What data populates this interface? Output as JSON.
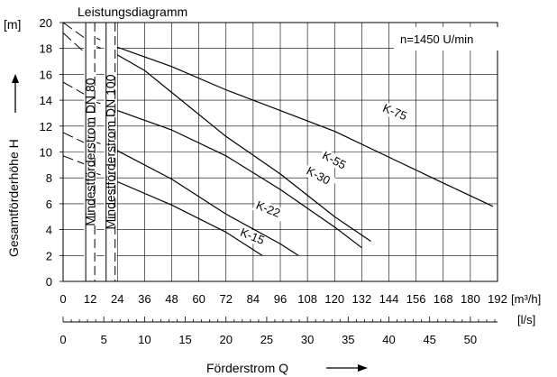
{
  "chart_data": {
    "type": "line",
    "title": "Leistungsdiagramm",
    "speed_note": "n=1450 U/min",
    "ylabel": "Gesamtförderhöhe  H",
    "yunit": "[m]",
    "xlabel": "Förderstrom  Q",
    "xunit_primary": "[m³/h]",
    "xunit_secondary": "[l/s]",
    "ylim": [
      0,
      20
    ],
    "xlim": [
      0,
      192
    ],
    "yticks": [
      0,
      2,
      4,
      6,
      8,
      10,
      12,
      14,
      16,
      18,
      20
    ],
    "xticks": [
      0,
      12,
      24,
      36,
      48,
      60,
      72,
      84,
      96,
      108,
      120,
      132,
      144,
      156,
      168,
      180,
      192
    ],
    "xticks_secondary": [
      0,
      5,
      10,
      15,
      20,
      25,
      30,
      35,
      40,
      45,
      50
    ],
    "grid": true,
    "series": [
      {
        "name": "K-15",
        "points": [
          [
            24,
            7.7
          ],
          [
            48,
            5.9
          ],
          [
            72,
            3.8
          ],
          [
            88,
            2.0
          ]
        ]
      },
      {
        "name": "K-22",
        "points": [
          [
            24,
            10.1
          ],
          [
            48,
            7.9
          ],
          [
            72,
            5.2
          ],
          [
            96,
            2.9
          ],
          [
            104,
            2.0
          ]
        ]
      },
      {
        "name": "K-30",
        "points": [
          [
            24,
            13.2
          ],
          [
            48,
            11.7
          ],
          [
            72,
            9.7
          ],
          [
            96,
            7.1
          ],
          [
            120,
            4.2
          ],
          [
            132,
            2.6
          ]
        ]
      },
      {
        "name": "K-55",
        "points": [
          [
            24,
            17.5
          ],
          [
            36,
            16.3
          ],
          [
            48,
            14.6
          ],
          [
            72,
            11.2
          ],
          [
            96,
            8.3
          ],
          [
            120,
            5.0
          ],
          [
            136,
            3.1
          ]
        ]
      },
      {
        "name": "K-75",
        "points": [
          [
            24,
            18.1
          ],
          [
            48,
            16.6
          ],
          [
            72,
            14.8
          ],
          [
            96,
            13.2
          ],
          [
            120,
            11.6
          ],
          [
            144,
            9.6
          ],
          [
            168,
            7.6
          ],
          [
            190,
            5.8
          ]
        ]
      }
    ],
    "min_flow_lines": [
      {
        "label": "Mindestförderstrom DN 80",
        "x": 12
      },
      {
        "label": "Mindestförderstrom DN 100",
        "x": 21
      }
    ],
    "dashed_guides": [
      {
        "x1": 0,
        "y1": 20,
        "x2": 12,
        "y2": 18.5
      },
      {
        "x1": 0,
        "y1": 19.2,
        "x2": 12,
        "y2": 17.3
      },
      {
        "x1": 0,
        "y1": 15.4,
        "x2": 12,
        "y2": 14.2
      },
      {
        "x1": 0,
        "y1": 11.5,
        "x2": 12,
        "y2": 10.5
      },
      {
        "x1": 0,
        "y1": 9.7,
        "x2": 12,
        "y2": 8.9
      },
      {
        "x1": 12,
        "y1": 19.0,
        "x2": 24,
        "y2": 18.1
      },
      {
        "x1": 12,
        "y1": 18.3,
        "x2": 24,
        "y2": 17.6
      },
      {
        "x1": 12,
        "y1": 14.0,
        "x2": 24,
        "y2": 13.3
      },
      {
        "x1": 12,
        "y1": 10.9,
        "x2": 24,
        "y2": 10.2
      },
      {
        "x1": 12,
        "y1": 8.5,
        "x2": 24,
        "y2": 7.8
      }
    ]
  }
}
